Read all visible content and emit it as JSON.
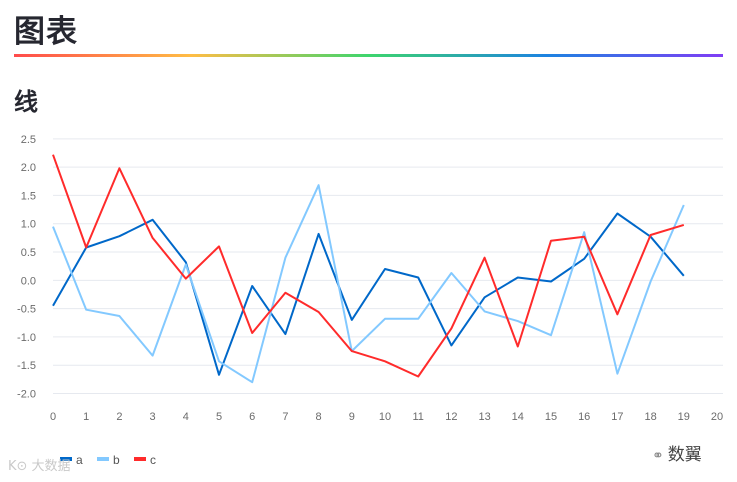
{
  "page": {
    "title": "图表",
    "section": "线"
  },
  "watermarks": {
    "left": "K⊙ 大数据",
    "right": "数翼",
    "right_icon": "wechat-icon"
  },
  "colors": {
    "a": "#0068c9",
    "b": "#83c9ff",
    "c": "#ff2b2b",
    "grid": "#e6e9ef",
    "tick": "#6b6b6b"
  },
  "chart_data": {
    "type": "line",
    "title": "",
    "xlabel": "",
    "ylabel": "",
    "x": [
      0,
      1,
      2,
      3,
      4,
      5,
      6,
      7,
      8,
      9,
      10,
      11,
      12,
      13,
      14,
      15,
      16,
      17,
      18,
      19
    ],
    "xlim": [
      0,
      20
    ],
    "ylim": [
      -2.15,
      2.55
    ],
    "xticks": [
      0,
      1,
      2,
      3,
      4,
      5,
      6,
      7,
      8,
      9,
      10,
      11,
      12,
      13,
      14,
      15,
      16,
      17,
      18,
      19,
      20
    ],
    "yticks": [
      2.5,
      2.0,
      1.5,
      1.0,
      0.5,
      0.0,
      -0.5,
      -1.0,
      -1.5,
      -2.0
    ],
    "ytick_labels": [
      "2.5",
      "2.0",
      "1.5",
      "1.0",
      "0.5",
      "0.0",
      "-0.5",
      "-1.0",
      "-1.5",
      "-2.0"
    ],
    "grid": "horizontal",
    "legend": "bottom-left",
    "series": [
      {
        "name": "a",
        "color": "#0068c9",
        "values": [
          -0.45,
          0.58,
          0.78,
          1.07,
          0.32,
          -1.67,
          -0.1,
          -0.95,
          0.82,
          -0.7,
          0.2,
          0.05,
          -1.15,
          -0.3,
          0.05,
          -0.02,
          0.38,
          1.18,
          0.77,
          0.08
        ]
      },
      {
        "name": "b",
        "color": "#83c9ff",
        "values": [
          0.95,
          -0.52,
          -0.63,
          -1.33,
          0.28,
          -1.43,
          -1.8,
          0.4,
          1.68,
          -1.25,
          -0.68,
          -0.68,
          0.13,
          -0.55,
          -0.72,
          -0.97,
          0.85,
          -1.65,
          -0.02,
          1.33
        ]
      },
      {
        "name": "c",
        "color": "#ff2b2b",
        "values": [
          2.22,
          0.58,
          1.98,
          0.75,
          0.03,
          0.6,
          -0.93,
          -0.22,
          -0.56,
          -1.25,
          -1.43,
          -1.7,
          -0.85,
          0.4,
          -1.17,
          0.7,
          0.77,
          -0.6,
          0.8,
          0.98
        ]
      }
    ]
  }
}
